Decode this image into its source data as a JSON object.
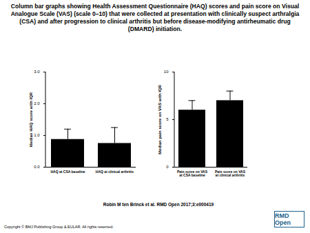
{
  "title": "Column bar graphs showing Health Assessment Questionnaire (HAQ) scores and pain score on Visual Analogue Scale (VAS) (scale 0–10) that were collected at presentation with clinically suspect arthralgia (CSA) and after progression to clinical arthritis but before disease-modifying antirheumatic drug (DMARD) initiation.",
  "citation": "Robin M ten Brinck et al. RMD Open 2017;3:e000419",
  "copyright": "Copyright © BMJ Publishing Group & EULAR. All rights reserved.",
  "logo": "RMD Open",
  "chart_data": [
    {
      "type": "bar",
      "y_label": "Median HAQ score with IQR",
      "categories": [
        "HAQ at CSA baseline",
        "HAQ at clinical arthritis"
      ],
      "values": [
        0.875,
        0.75
      ],
      "iqr_upper": [
        1.2,
        1.25
      ],
      "color": "#000000",
      "ylim": [
        0,
        3
      ],
      "yticks": [
        0,
        1,
        2,
        3
      ]
    },
    {
      "type": "bar",
      "y_label": "Median pain score on VAS with IQR",
      "categories": [
        "Pain score on VAS\nat CSA baseline",
        "Pain score on VAS\nat clinical arthritis"
      ],
      "values": [
        6,
        7
      ],
      "iqr_upper": [
        7,
        8
      ],
      "color": "#000000",
      "ylim": [
        0,
        10
      ],
      "yticks": [
        0,
        5,
        10
      ]
    }
  ]
}
